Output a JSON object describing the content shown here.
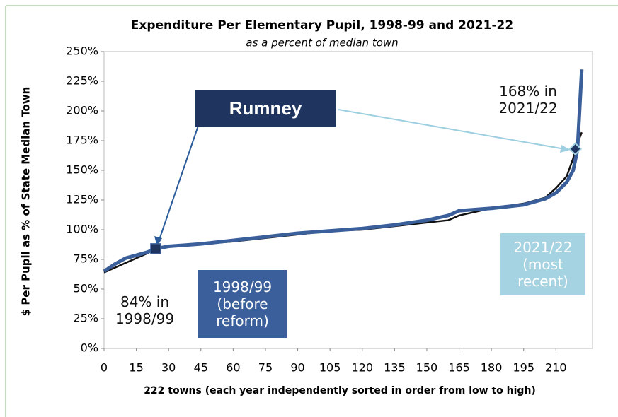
{
  "chart_data": {
    "type": "line",
    "title": "Expenditure Per Elementary Pupil, 1998-99 and 2021-22",
    "subtitle": "as a percent of median town",
    "x_label": "222 towns (each year independently sorted in order from low to high)",
    "y_label": "$ Per Pupil as % of State Median Town",
    "xlim": [
      0,
      227
    ],
    "xticks": [
      0,
      15,
      30,
      45,
      60,
      75,
      90,
      105,
      120,
      135,
      150,
      165,
      180,
      195,
      210
    ],
    "ylim": [
      0,
      250
    ],
    "yticks": [
      {
        "value": 0,
        "label": "0%"
      },
      {
        "value": 25,
        "label": "25%"
      },
      {
        "value": 50,
        "label": "50%"
      },
      {
        "value": 75,
        "label": "75%"
      },
      {
        "value": 100,
        "label": "100%"
      },
      {
        "value": 125,
        "label": "125%"
      },
      {
        "value": 150,
        "label": "150%"
      },
      {
        "value": 175,
        "label": "175%"
      },
      {
        "value": 200,
        "label": "200%"
      },
      {
        "value": 225,
        "label": "225%"
      },
      {
        "value": 250,
        "label": "250%"
      }
    ],
    "series": [
      {
        "name": "2021/22 (most recent)",
        "color": "#111111",
        "x": [
          0,
          10,
          20,
          24,
          30,
          45,
          60,
          75,
          90,
          105,
          120,
          135,
          150,
          160,
          165,
          180,
          195,
          205,
          210,
          215,
          218,
          219,
          222
        ],
        "values": [
          64,
          72,
          80,
          84,
          86,
          88,
          90,
          93,
          96,
          99,
          100,
          103,
          106,
          108,
          112,
          118,
          122,
          127,
          135,
          145,
          160,
          168,
          182
        ]
      },
      {
        "name": "1998/99 (before reform)",
        "color": "#3a5f9a",
        "x": [
          0,
          5,
          10,
          20,
          24,
          30,
          45,
          60,
          75,
          90,
          105,
          120,
          135,
          150,
          160,
          165,
          180,
          195,
          205,
          210,
          215,
          218,
          220,
          222
        ],
        "values": [
          65,
          71,
          76,
          81,
          84,
          86,
          88,
          91,
          94,
          97,
          99,
          101,
          104,
          108,
          112,
          116,
          118,
          121,
          126,
          131,
          140,
          150,
          167,
          235
        ]
      }
    ],
    "highlight_label": "Rumney",
    "highlights": [
      {
        "x": 24,
        "y": 84,
        "label": "84% in 1998/99"
      },
      {
        "x": 219,
        "y": 168,
        "label": "168% in 2021/22"
      }
    ]
  }
}
